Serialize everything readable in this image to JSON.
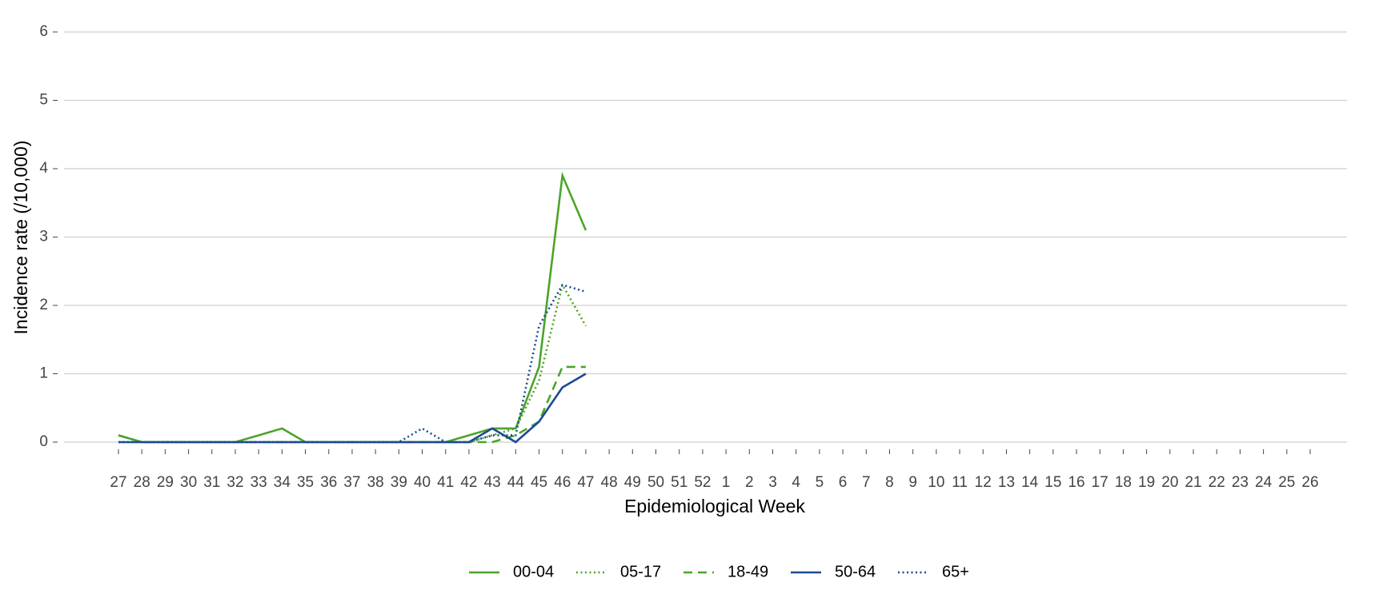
{
  "chart_data": {
    "type": "line",
    "x_label": "Epidemiological Week",
    "y_label": "Incidence rate (/10,000)",
    "categories": [
      27,
      28,
      29,
      30,
      31,
      32,
      33,
      34,
      35,
      36,
      37,
      38,
      39,
      40,
      41,
      42,
      43,
      44,
      45,
      46,
      47,
      48,
      49,
      50,
      51,
      52,
      1,
      2,
      3,
      4,
      5,
      6,
      7,
      8,
      9,
      10,
      11,
      12,
      13,
      14,
      15,
      16,
      17,
      18,
      19,
      20,
      21,
      22,
      23,
      24,
      25,
      26
    ],
    "series": [
      {
        "name": "00-04",
        "color": "#4aa528",
        "dash": "solid",
        "values": [
          0.1,
          0,
          0,
          0,
          0,
          0,
          0.1,
          0.2,
          0,
          0,
          0,
          0,
          0,
          0,
          0,
          0.1,
          0.2,
          0.2,
          1.1,
          3.9,
          3.1,
          null,
          null,
          null,
          null,
          null,
          null,
          null,
          null,
          null,
          null,
          null,
          null,
          null,
          null,
          null,
          null,
          null,
          null,
          null,
          null,
          null,
          null,
          null,
          null,
          null,
          null,
          null,
          null,
          null,
          null,
          null
        ]
      },
      {
        "name": "05-17",
        "color": "#4aa528",
        "dash": "dotted",
        "values": [
          0.1,
          0,
          0,
          0,
          0,
          0,
          0,
          0,
          0,
          0,
          0,
          0,
          0,
          0,
          0,
          0,
          0.1,
          0.2,
          0.9,
          2.3,
          1.7,
          null,
          null,
          null,
          null,
          null,
          null,
          null,
          null,
          null,
          null,
          null,
          null,
          null,
          null,
          null,
          null,
          null,
          null,
          null,
          null,
          null,
          null,
          null,
          null,
          null,
          null,
          null,
          null,
          null,
          null,
          null
        ]
      },
      {
        "name": "18-49",
        "color": "#4aa528",
        "dash": "dashed",
        "values": [
          0.1,
          0,
          0,
          0,
          0,
          0,
          0,
          0,
          0,
          0,
          0,
          0,
          0,
          0,
          0,
          0,
          0,
          0.1,
          0.3,
          1.1,
          1.1,
          null,
          null,
          null,
          null,
          null,
          null,
          null,
          null,
          null,
          null,
          null,
          null,
          null,
          null,
          null,
          null,
          null,
          null,
          null,
          null,
          null,
          null,
          null,
          null,
          null,
          null,
          null,
          null,
          null,
          null,
          null
        ]
      },
      {
        "name": "50-64",
        "color": "#1c4a94",
        "dash": "solid",
        "values": [
          0,
          0,
          0,
          0,
          0,
          0,
          0,
          0,
          0,
          0,
          0,
          0,
          0,
          0,
          0,
          0,
          0.2,
          0,
          0.3,
          0.8,
          1.0,
          null,
          null,
          null,
          null,
          null,
          null,
          null,
          null,
          null,
          null,
          null,
          null,
          null,
          null,
          null,
          null,
          null,
          null,
          null,
          null,
          null,
          null,
          null,
          null,
          null,
          null,
          null,
          null,
          null,
          null,
          null
        ]
      },
      {
        "name": "65+",
        "color": "#1c4a94",
        "dash": "dotted",
        "values": [
          0,
          0,
          0,
          0,
          0,
          0,
          0,
          0,
          0,
          0,
          0,
          0,
          0,
          0.2,
          0,
          0,
          0.1,
          0.1,
          1.7,
          2.3,
          2.2,
          null,
          null,
          null,
          null,
          null,
          null,
          null,
          null,
          null,
          null,
          null,
          null,
          null,
          null,
          null,
          null,
          null,
          null,
          null,
          null,
          null,
          null,
          null,
          null,
          null,
          null,
          null,
          null,
          null,
          null,
          null
        ]
      }
    ],
    "ylim": [
      0,
      6
    ],
    "yticks": [
      0,
      1,
      2,
      3,
      4,
      5,
      6
    ],
    "grid": true,
    "legend": "bottom"
  }
}
